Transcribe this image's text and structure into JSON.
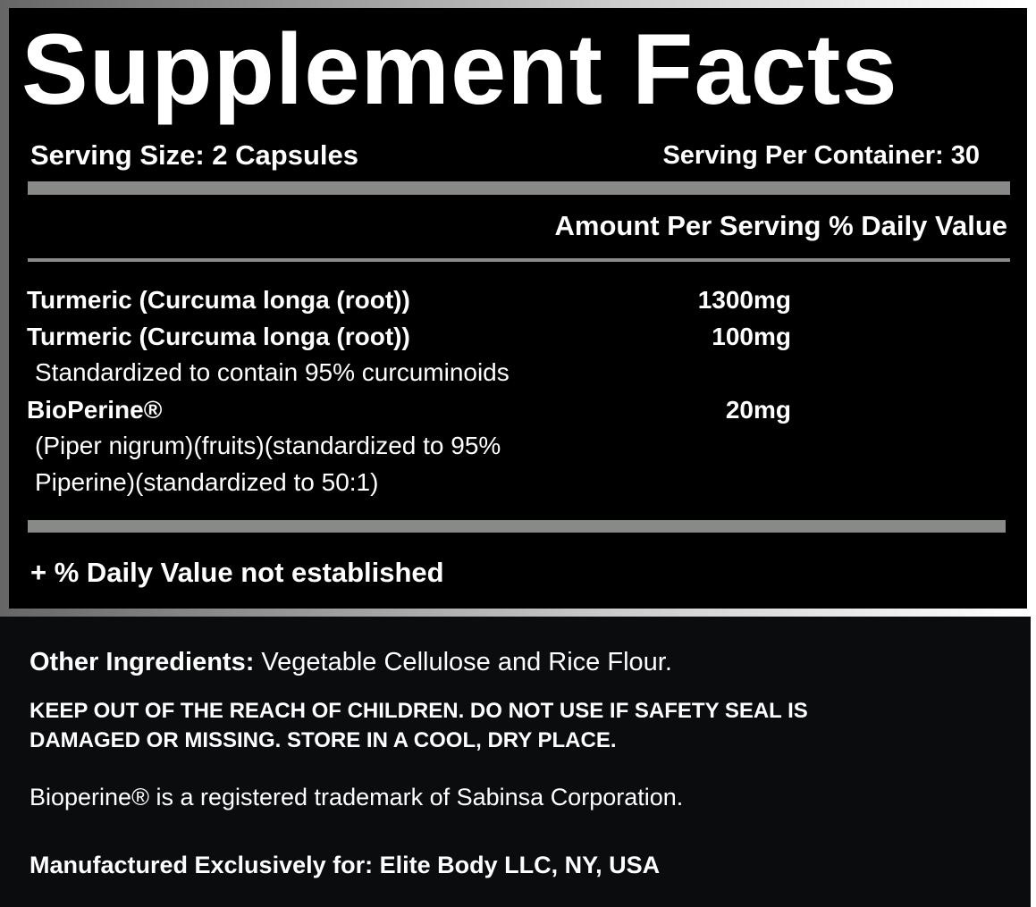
{
  "title": "Supplement Facts",
  "serving_size": "Serving Size: 2 Capsules",
  "servings_per_container": "Serving Per Container: 30",
  "column_header": "Amount Per Serving % Daily Value",
  "ingredients": [
    {
      "name": "Turmeric (Curcuma longa (root))",
      "amount": "1300mg"
    },
    {
      "name": "Turmeric (Curcuma longa (root))",
      "amount": "100mg",
      "detail": [
        "Standardized to contain 95% curcuminoids"
      ]
    },
    {
      "name": "BioPerine®",
      "amount": "20mg",
      "detail": [
        "(Piper nigrum)(fruits)(standardized to 95%",
        "Piperine)(standardized to 50:1)"
      ]
    }
  ],
  "footnote": "+ % Daily Value not established",
  "other_ingredients_label": "Other Ingredients:",
  "other_ingredients": "Vegetable Cellulose and Rice Flour.",
  "warning": [
    "KEEP OUT OF THE REACH OF CHILDREN. DO NOT USE IF SAFETY SEAL IS",
    "DAMAGED OR MISSING. STORE IN A COOL, DRY PLACE."
  ],
  "trademark": "Bioperine® is a registered trademark of Sabinsa Corporation.",
  "manufacturer": "Manufactured Exclusively for: Elite Body LLC, NY, USA",
  "colors": {
    "panel": "#000000",
    "bottom_panel": "#0b0c0e",
    "rule": "#888a87"
  }
}
